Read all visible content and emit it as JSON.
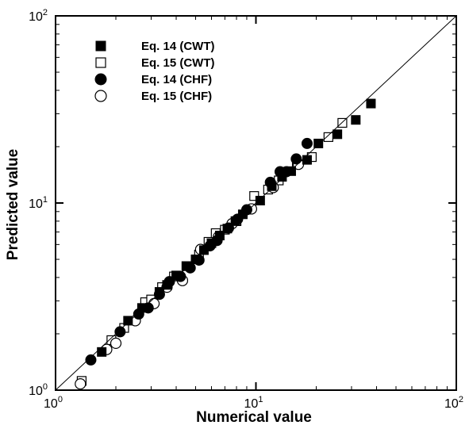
{
  "chart_data": {
    "type": "scatter",
    "xlabel": "Numerical value",
    "ylabel": "Predicted value",
    "xscale": "log",
    "yscale": "log",
    "xlim": [
      1,
      100
    ],
    "ylim": [
      1,
      100
    ],
    "x_ticks": [
      {
        "value": 1,
        "base": "10",
        "exp": "0"
      },
      {
        "value": 10,
        "base": "10",
        "exp": "1"
      },
      {
        "value": 100,
        "base": "10",
        "exp": "2"
      }
    ],
    "y_ticks": [
      {
        "value": 1,
        "base": "10",
        "exp": "0"
      },
      {
        "value": 10,
        "base": "10",
        "exp": "1"
      },
      {
        "value": 100,
        "base": "10",
        "exp": "2"
      }
    ],
    "reference_line": "y = x",
    "legend_position": "top-left",
    "grid": false,
    "series": [
      {
        "name": "Eq. 14 (CWT)",
        "marker": "square-filled",
        "x": [
          1.7,
          2.3,
          2.7,
          3.3,
          3.6,
          4.0,
          4.5,
          5.0,
          5.5,
          6.0,
          6.6,
          7.2,
          7.9,
          8.6,
          10.5,
          12.0,
          13.5,
          15.0,
          18.0,
          20.5,
          25.5,
          31.5,
          37.5
        ],
        "y": [
          1.6,
          2.35,
          2.75,
          3.35,
          3.65,
          4.1,
          4.6,
          5.0,
          5.6,
          6.1,
          6.7,
          7.3,
          8.0,
          8.7,
          10.3,
          12.3,
          13.8,
          14.8,
          17.0,
          20.8,
          23.3,
          27.8,
          34.0
        ]
      },
      {
        "name": "Eq. 15 (CWT)",
        "marker": "square-open",
        "x": [
          1.35,
          1.9,
          2.2,
          2.8,
          3.0,
          3.4,
          3.9,
          4.5,
          5.2,
          5.8,
          6.3,
          7.0,
          8.0,
          9.8,
          11.5,
          13.0,
          16.0,
          19.0,
          23.0,
          27.0
        ],
        "y": [
          1.12,
          1.85,
          2.15,
          2.95,
          3.05,
          3.55,
          4.05,
          4.6,
          5.3,
          6.2,
          6.9,
          7.2,
          8.0,
          10.9,
          11.8,
          13.2,
          16.2,
          17.6,
          22.5,
          26.8
        ]
      },
      {
        "name": "Eq. 14 (CHF)",
        "marker": "circle-filled",
        "x": [
          1.5,
          2.1,
          2.6,
          2.9,
          3.3,
          3.7,
          4.2,
          4.7,
          5.2,
          5.9,
          6.4,
          7.3,
          8.1,
          9.0,
          11.8,
          13.2,
          14.2,
          15.9,
          18.0
        ],
        "y": [
          1.45,
          2.05,
          2.55,
          2.75,
          3.25,
          3.8,
          4.05,
          4.5,
          4.95,
          5.9,
          6.3,
          7.35,
          8.2,
          9.2,
          12.9,
          14.7,
          14.7,
          17.2,
          20.8
        ],
        "extra": []
      },
      {
        "name": "Eq. 15 (CHF)",
        "marker": "circle-open",
        "x": [
          1.33,
          1.8,
          2.0,
          2.5,
          3.1,
          3.6,
          4.3,
          5.3,
          6.5,
          7.6,
          9.5,
          12.2,
          16.3
        ],
        "y": [
          1.08,
          1.65,
          1.78,
          2.35,
          2.9,
          3.55,
          3.85,
          5.65,
          6.6,
          7.75,
          9.3,
          12.1,
          16.1
        ]
      }
    ]
  }
}
